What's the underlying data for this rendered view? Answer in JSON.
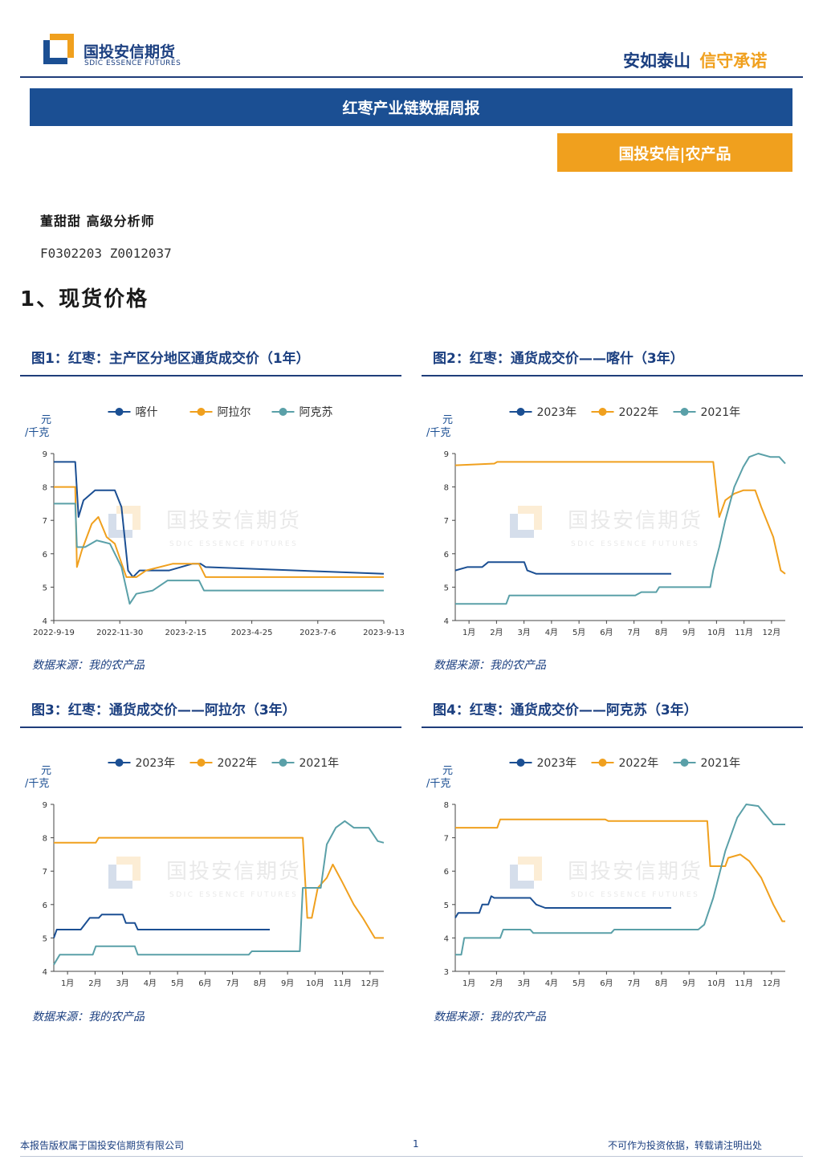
{
  "header": {
    "logo_cn": "国投安信期货",
    "logo_en": "SDIC ESSENCE FUTURES",
    "slogan_a": "安如泰山",
    "slogan_b": "信守承诺"
  },
  "report_title": "红枣产业链数据周报",
  "tag": "国投安信|农产品",
  "author": "董甜甜  高级分析师",
  "codes": "F0302203  Z0012037",
  "section_title": "1、现货价格",
  "watermark": {
    "cn": "国投安信期货",
    "en": "SDIC ESSENCE FUTURES"
  },
  "colors": {
    "navy": "#1b4f93",
    "orange": "#f0a01e",
    "teal": "#5aa0a8"
  },
  "figures": [
    {
      "title": "图1：红枣：主产区分地区通货成交价（1年）",
      "source": "数据来源：我的农产品"
    },
    {
      "title": "图2：红枣：通货成交价——喀什（3年）",
      "source": "数据来源：我的农产品"
    },
    {
      "title": "图3：红枣：通货成交价——阿拉尔（3年）",
      "source": "数据来源：我的农产品"
    },
    {
      "title": "图4：红枣：通货成交价——阿克苏（3年）",
      "source": "数据来源：我的农产品"
    }
  ],
  "chart_data": [
    {
      "type": "line",
      "ylabel": "元/千克",
      "ylim": [
        4,
        9
      ],
      "yticks": [
        "4",
        "5",
        "6",
        "7",
        "8",
        "9"
      ],
      "xlabels": [
        "2022-9-19",
        "2022-11-30",
        "2023-2-15",
        "2023-4-25",
        "2023-7-6",
        "2023-9-13"
      ],
      "legend": "top",
      "series": [
        {
          "name": "喀什",
          "color": "#1b4f93",
          "points": [
            [
              0,
              8.75
            ],
            [
              0.065,
              8.75
            ],
            [
              0.075,
              7.1
            ],
            [
              0.09,
              7.6
            ],
            [
              0.125,
              7.9
            ],
            [
              0.185,
              7.9
            ],
            [
              0.205,
              7.4
            ],
            [
              0.225,
              5.5
            ],
            [
              0.24,
              5.3
            ],
            [
              0.26,
              5.5
            ],
            [
              0.35,
              5.5
            ],
            [
              0.42,
              5.7
            ],
            [
              0.445,
              5.7
            ],
            [
              0.46,
              5.6
            ],
            [
              1,
              5.4
            ]
          ]
        },
        {
          "name": "阿拉尔",
          "color": "#f0a01e",
          "points": [
            [
              0,
              8.0
            ],
            [
              0.065,
              8.0
            ],
            [
              0.07,
              5.6
            ],
            [
              0.085,
              6.1
            ],
            [
              0.115,
              6.9
            ],
            [
              0.135,
              7.1
            ],
            [
              0.16,
              6.5
            ],
            [
              0.185,
              6.3
            ],
            [
              0.22,
              5.3
            ],
            [
              0.25,
              5.3
            ],
            [
              0.28,
              5.5
            ],
            [
              0.36,
              5.7
            ],
            [
              0.44,
              5.7
            ],
            [
              0.46,
              5.3
            ],
            [
              1,
              5.3
            ]
          ]
        },
        {
          "name": "阿克苏",
          "color": "#5aa0a8",
          "points": [
            [
              0,
              7.5
            ],
            [
              0.065,
              7.5
            ],
            [
              0.07,
              6.2
            ],
            [
              0.095,
              6.2
            ],
            [
              0.13,
              6.4
            ],
            [
              0.17,
              6.3
            ],
            [
              0.205,
              5.6
            ],
            [
              0.23,
              4.5
            ],
            [
              0.25,
              4.8
            ],
            [
              0.3,
              4.9
            ],
            [
              0.345,
              5.2
            ],
            [
              0.44,
              5.2
            ],
            [
              0.455,
              4.9
            ],
            [
              1,
              4.9
            ]
          ]
        }
      ]
    },
    {
      "type": "line",
      "ylabel": "元/千克",
      "ylim": [
        4,
        9
      ],
      "yticks": [
        "4",
        "5",
        "6",
        "7",
        "8",
        "9"
      ],
      "xlabels": [
        "1月",
        "2月",
        "3月",
        "4月",
        "5月",
        "6月",
        "7月",
        "8月",
        "9月",
        "10月",
        "11月",
        "12月"
      ],
      "legend": "top",
      "series": [
        {
          "name": "2023年",
          "color": "#1b4f93",
          "points": [
            [
              0,
              5.5
            ],
            [
              0.04,
              5.6
            ],
            [
              0.09,
              5.6
            ],
            [
              0.11,
              5.75
            ],
            [
              0.23,
              5.75
            ],
            [
              0.24,
              5.5
            ],
            [
              0.27,
              5.4
            ],
            [
              0.5,
              5.4
            ],
            [
              0.72,
              5.4
            ]
          ]
        },
        {
          "name": "2022年",
          "color": "#f0a01e",
          "points": [
            [
              0,
              8.65
            ],
            [
              0.13,
              8.7
            ],
            [
              0.14,
              8.75
            ],
            [
              0.86,
              8.75
            ],
            [
              0.875,
              7.5
            ],
            [
              0.88,
              7.1
            ],
            [
              0.9,
              7.6
            ],
            [
              0.93,
              7.8
            ],
            [
              0.96,
              7.9
            ],
            [
              1.0,
              7.9
            ],
            [
              1.02,
              7.4
            ],
            [
              1.06,
              6.5
            ],
            [
              1.085,
              5.5
            ],
            [
              1.1,
              5.4
            ]
          ]
        },
        {
          "name": "2021年",
          "color": "#5aa0a8",
          "points": [
            [
              0,
              4.5
            ],
            [
              0.17,
              4.5
            ],
            [
              0.18,
              4.75
            ],
            [
              0.6,
              4.75
            ],
            [
              0.62,
              4.85
            ],
            [
              0.67,
              4.85
            ],
            [
              0.68,
              5.0
            ],
            [
              0.85,
              5.0
            ],
            [
              0.86,
              5.5
            ],
            [
              0.88,
              6.2
            ],
            [
              0.9,
              7.0
            ],
            [
              0.93,
              8.0
            ],
            [
              0.96,
              8.6
            ],
            [
              0.98,
              8.9
            ],
            [
              1.01,
              9.0
            ],
            [
              1.05,
              8.9
            ],
            [
              1.08,
              8.9
            ],
            [
              1.1,
              8.7
            ]
          ]
        }
      ]
    },
    {
      "type": "line",
      "ylabel": "元/千克",
      "ylim": [
        4,
        9
      ],
      "yticks": [
        "4",
        "5",
        "6",
        "7",
        "8",
        "9"
      ],
      "xlabels": [
        "1月",
        "2月",
        "3月",
        "4月",
        "5月",
        "6月",
        "7月",
        "8月",
        "9月",
        "10月",
        "11月",
        "12月"
      ],
      "legend": "top",
      "series": [
        {
          "name": "2023年",
          "color": "#1b4f93",
          "points": [
            [
              0,
              5.0
            ],
            [
              0.01,
              5.25
            ],
            [
              0.09,
              5.25
            ],
            [
              0.12,
              5.6
            ],
            [
              0.15,
              5.6
            ],
            [
              0.16,
              5.7
            ],
            [
              0.23,
              5.7
            ],
            [
              0.24,
              5.45
            ],
            [
              0.27,
              5.45
            ],
            [
              0.28,
              5.25
            ],
            [
              0.5,
              5.25
            ],
            [
              0.72,
              5.25
            ]
          ]
        },
        {
          "name": "2022年",
          "color": "#f0a01e",
          "points": [
            [
              0,
              7.85
            ],
            [
              0.14,
              7.85
            ],
            [
              0.15,
              8.0
            ],
            [
              0.83,
              8.0
            ],
            [
              0.845,
              5.6
            ],
            [
              0.86,
              5.6
            ],
            [
              0.88,
              6.5
            ],
            [
              0.91,
              6.8
            ],
            [
              0.93,
              7.2
            ],
            [
              0.96,
              6.7
            ],
            [
              1.0,
              6.0
            ],
            [
              1.03,
              5.6
            ],
            [
              1.07,
              5.0
            ],
            [
              1.1,
              5.0
            ]
          ]
        },
        {
          "name": "2021年",
          "color": "#5aa0a8",
          "points": [
            [
              0,
              4.2
            ],
            [
              0.02,
              4.5
            ],
            [
              0.13,
              4.5
            ],
            [
              0.14,
              4.75
            ],
            [
              0.27,
              4.75
            ],
            [
              0.28,
              4.5
            ],
            [
              0.65,
              4.5
            ],
            [
              0.66,
              4.6
            ],
            [
              0.82,
              4.6
            ],
            [
              0.83,
              6.5
            ],
            [
              0.89,
              6.5
            ],
            [
              0.91,
              7.8
            ],
            [
              0.94,
              8.3
            ],
            [
              0.97,
              8.5
            ],
            [
              1.0,
              8.3
            ],
            [
              1.05,
              8.3
            ],
            [
              1.08,
              7.9
            ],
            [
              1.1,
              7.85
            ]
          ]
        }
      ]
    },
    {
      "type": "line",
      "ylabel": "元/千克",
      "ylim": [
        3,
        8
      ],
      "yticks": [
        "3",
        "4",
        "5",
        "6",
        "7",
        "8"
      ],
      "xlabels": [
        "1月",
        "2月",
        "3月",
        "4月",
        "5月",
        "6月",
        "7月",
        "8月",
        "9月",
        "10月",
        "11月",
        "12月"
      ],
      "legend": "top",
      "series": [
        {
          "name": "2023年",
          "color": "#1b4f93",
          "points": [
            [
              0,
              4.6
            ],
            [
              0.01,
              4.75
            ],
            [
              0.08,
              4.75
            ],
            [
              0.09,
              5.0
            ],
            [
              0.11,
              5.0
            ],
            [
              0.12,
              5.25
            ],
            [
              0.13,
              5.2
            ],
            [
              0.25,
              5.2
            ],
            [
              0.27,
              5.0
            ],
            [
              0.3,
              4.9
            ],
            [
              0.5,
              4.9
            ],
            [
              0.72,
              4.9
            ]
          ]
        },
        {
          "name": "2022年",
          "color": "#f0a01e",
          "points": [
            [
              0,
              7.3
            ],
            [
              0.14,
              7.3
            ],
            [
              0.15,
              7.55
            ],
            [
              0.5,
              7.55
            ],
            [
              0.51,
              7.5
            ],
            [
              0.84,
              7.5
            ],
            [
              0.85,
              6.15
            ],
            [
              0.9,
              6.15
            ],
            [
              0.91,
              6.4
            ],
            [
              0.95,
              6.5
            ],
            [
              0.98,
              6.3
            ],
            [
              1.02,
              5.8
            ],
            [
              1.06,
              5.0
            ],
            [
              1.09,
              4.5
            ],
            [
              1.1,
              4.5
            ]
          ]
        },
        {
          "name": "2021年",
          "color": "#5aa0a8",
          "points": [
            [
              0,
              3.5
            ],
            [
              0.02,
              3.5
            ],
            [
              0.03,
              4.0
            ],
            [
              0.15,
              4.0
            ],
            [
              0.16,
              4.25
            ],
            [
              0.25,
              4.25
            ],
            [
              0.26,
              4.15
            ],
            [
              0.52,
              4.15
            ],
            [
              0.53,
              4.25
            ],
            [
              0.81,
              4.25
            ],
            [
              0.83,
              4.4
            ],
            [
              0.86,
              5.2
            ],
            [
              0.9,
              6.6
            ],
            [
              0.94,
              7.6
            ],
            [
              0.97,
              8.0
            ],
            [
              1.01,
              7.95
            ],
            [
              1.06,
              7.4
            ],
            [
              1.1,
              7.4
            ]
          ]
        }
      ]
    }
  ],
  "footer": {
    "left": "本报告版权属于国投安信期货有限公司",
    "page": "1",
    "right": "不可作为投资依据，转载请注明出处"
  }
}
